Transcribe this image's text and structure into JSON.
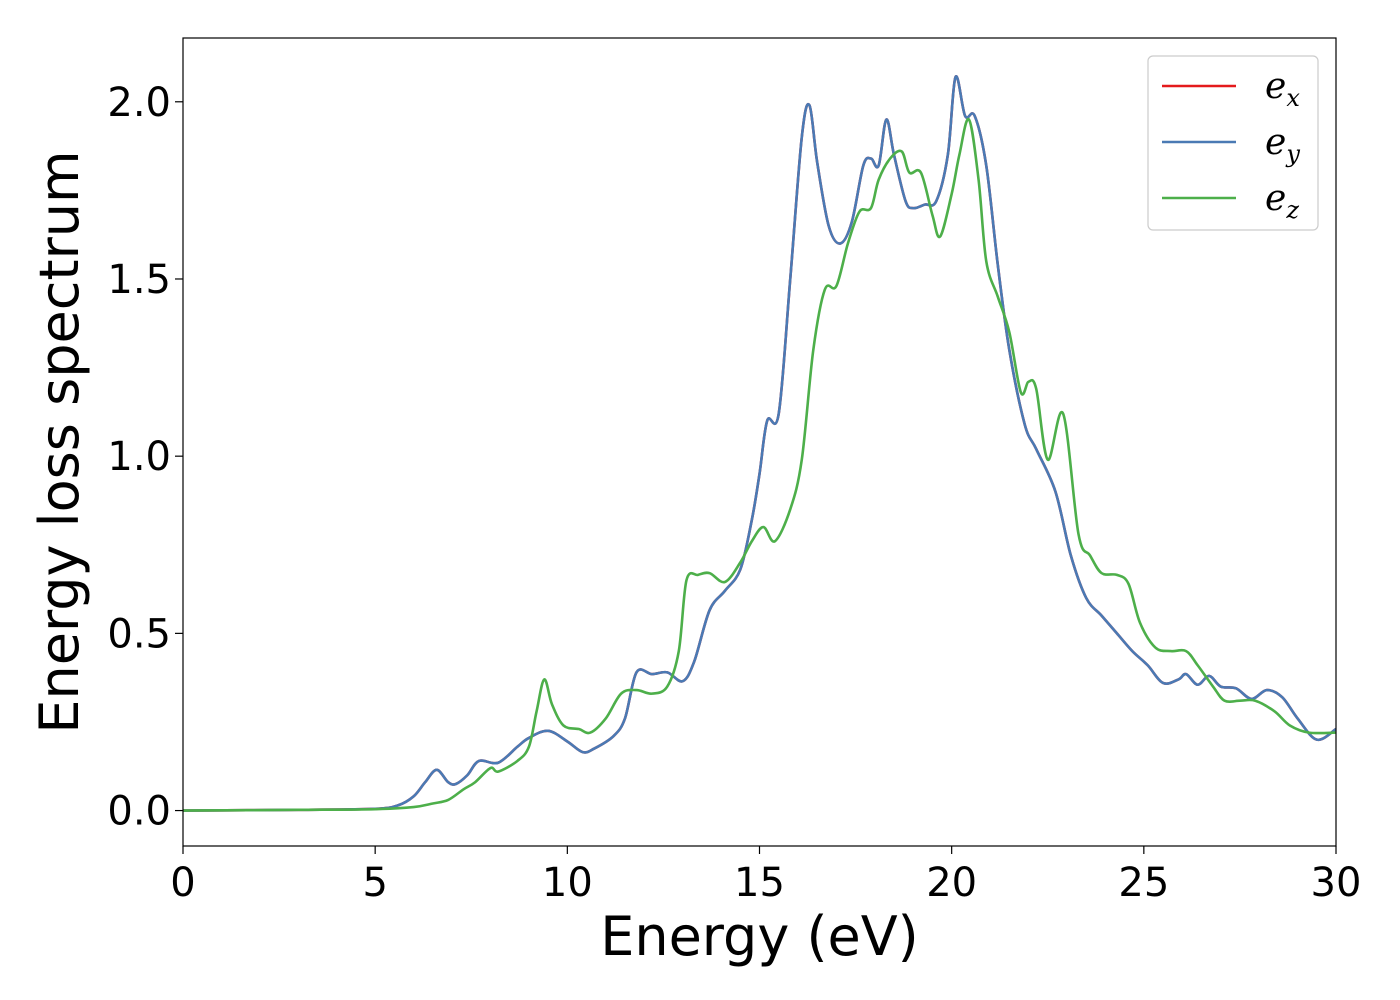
{
  "chart_data": {
    "type": "line",
    "xlabel": "Energy (eV)",
    "ylabel": "Energy loss spectrum",
    "xlim": [
      0,
      30
    ],
    "ylim": [
      -0.1,
      2.18
    ],
    "xticks": [
      0,
      5,
      10,
      15,
      20,
      25,
      30
    ],
    "yticks": [
      0.0,
      0.5,
      1.0,
      1.5,
      2.0
    ],
    "xtick_labels": [
      "0",
      "5",
      "10",
      "15",
      "20",
      "25",
      "30"
    ],
    "ytick_labels": [
      "0.0",
      "0.5",
      "1.0",
      "1.5",
      "2.0"
    ],
    "grid": false,
    "legend_position": "top-right",
    "series": [
      {
        "name": "ex",
        "base": "e",
        "sub": "x",
        "color": "#e41a1c",
        "points": [
          [
            0,
            0
          ],
          [
            3,
            0.002
          ],
          [
            5,
            0.005
          ],
          [
            5.6,
            0.015
          ],
          [
            6.0,
            0.04
          ],
          [
            6.3,
            0.08
          ],
          [
            6.6,
            0.115
          ],
          [
            6.9,
            0.08
          ],
          [
            7.1,
            0.075
          ],
          [
            7.4,
            0.1
          ],
          [
            7.7,
            0.14
          ],
          [
            8.2,
            0.135
          ],
          [
            8.7,
            0.18
          ],
          [
            9.0,
            0.205
          ],
          [
            9.5,
            0.225
          ],
          [
            10.0,
            0.195
          ],
          [
            10.4,
            0.165
          ],
          [
            10.7,
            0.175
          ],
          [
            11.2,
            0.21
          ],
          [
            11.5,
            0.26
          ],
          [
            11.8,
            0.39
          ],
          [
            12.2,
            0.385
          ],
          [
            12.6,
            0.39
          ],
          [
            13.0,
            0.365
          ],
          [
            13.3,
            0.42
          ],
          [
            13.7,
            0.565
          ],
          [
            14.1,
            0.62
          ],
          [
            14.5,
            0.68
          ],
          [
            14.8,
            0.82
          ],
          [
            15.0,
            0.95
          ],
          [
            15.2,
            1.1
          ],
          [
            15.5,
            1.12
          ],
          [
            15.8,
            1.5
          ],
          [
            16.1,
            1.9
          ],
          [
            16.3,
            1.99
          ],
          [
            16.5,
            1.83
          ],
          [
            16.8,
            1.65
          ],
          [
            17.1,
            1.6
          ],
          [
            17.4,
            1.66
          ],
          [
            17.7,
            1.82
          ],
          [
            17.9,
            1.84
          ],
          [
            18.1,
            1.82
          ],
          [
            18.3,
            1.95
          ],
          [
            18.5,
            1.85
          ],
          [
            18.8,
            1.72
          ],
          [
            19.0,
            1.7
          ],
          [
            19.3,
            1.71
          ],
          [
            19.6,
            1.72
          ],
          [
            19.9,
            1.85
          ],
          [
            20.1,
            2.07
          ],
          [
            20.35,
            1.96
          ],
          [
            20.6,
            1.96
          ],
          [
            20.9,
            1.82
          ],
          [
            21.2,
            1.54
          ],
          [
            21.5,
            1.3
          ],
          [
            21.9,
            1.09
          ],
          [
            22.2,
            1.02
          ],
          [
            22.7,
            0.9
          ],
          [
            23.1,
            0.72
          ],
          [
            23.5,
            0.6
          ],
          [
            23.9,
            0.55
          ],
          [
            24.3,
            0.5
          ],
          [
            24.7,
            0.45
          ],
          [
            25.1,
            0.41
          ],
          [
            25.5,
            0.36
          ],
          [
            25.9,
            0.37
          ],
          [
            26.1,
            0.385
          ],
          [
            26.4,
            0.355
          ],
          [
            26.7,
            0.38
          ],
          [
            27.0,
            0.35
          ],
          [
            27.4,
            0.345
          ],
          [
            27.8,
            0.315
          ],
          [
            28.2,
            0.34
          ],
          [
            28.6,
            0.32
          ],
          [
            29.0,
            0.26
          ],
          [
            29.5,
            0.2
          ],
          [
            30.0,
            0.23
          ]
        ]
      },
      {
        "name": "ey",
        "base": "e",
        "sub": "y",
        "color": "#4a7ab4",
        "points": [
          [
            0,
            0
          ],
          [
            3,
            0.002
          ],
          [
            5,
            0.005
          ],
          [
            5.6,
            0.015
          ],
          [
            6.0,
            0.04
          ],
          [
            6.3,
            0.08
          ],
          [
            6.6,
            0.115
          ],
          [
            6.9,
            0.08
          ],
          [
            7.1,
            0.075
          ],
          [
            7.4,
            0.1
          ],
          [
            7.7,
            0.14
          ],
          [
            8.2,
            0.135
          ],
          [
            8.7,
            0.18
          ],
          [
            9.0,
            0.205
          ],
          [
            9.5,
            0.225
          ],
          [
            10.0,
            0.195
          ],
          [
            10.4,
            0.165
          ],
          [
            10.7,
            0.175
          ],
          [
            11.2,
            0.21
          ],
          [
            11.5,
            0.26
          ],
          [
            11.8,
            0.39
          ],
          [
            12.2,
            0.385
          ],
          [
            12.6,
            0.39
          ],
          [
            13.0,
            0.365
          ],
          [
            13.3,
            0.42
          ],
          [
            13.7,
            0.565
          ],
          [
            14.1,
            0.62
          ],
          [
            14.5,
            0.68
          ],
          [
            14.8,
            0.82
          ],
          [
            15.0,
            0.95
          ],
          [
            15.2,
            1.1
          ],
          [
            15.5,
            1.12
          ],
          [
            15.8,
            1.5
          ],
          [
            16.1,
            1.9
          ],
          [
            16.3,
            1.99
          ],
          [
            16.5,
            1.83
          ],
          [
            16.8,
            1.65
          ],
          [
            17.1,
            1.6
          ],
          [
            17.4,
            1.66
          ],
          [
            17.7,
            1.82
          ],
          [
            17.9,
            1.84
          ],
          [
            18.1,
            1.82
          ],
          [
            18.3,
            1.95
          ],
          [
            18.5,
            1.85
          ],
          [
            18.8,
            1.72
          ],
          [
            19.0,
            1.7
          ],
          [
            19.3,
            1.71
          ],
          [
            19.6,
            1.72
          ],
          [
            19.9,
            1.85
          ],
          [
            20.1,
            2.07
          ],
          [
            20.35,
            1.96
          ],
          [
            20.6,
            1.96
          ],
          [
            20.9,
            1.82
          ],
          [
            21.2,
            1.54
          ],
          [
            21.5,
            1.3
          ],
          [
            21.9,
            1.09
          ],
          [
            22.2,
            1.02
          ],
          [
            22.7,
            0.9
          ],
          [
            23.1,
            0.72
          ],
          [
            23.5,
            0.6
          ],
          [
            23.9,
            0.55
          ],
          [
            24.3,
            0.5
          ],
          [
            24.7,
            0.45
          ],
          [
            25.1,
            0.41
          ],
          [
            25.5,
            0.36
          ],
          [
            25.9,
            0.37
          ],
          [
            26.1,
            0.385
          ],
          [
            26.4,
            0.355
          ],
          [
            26.7,
            0.38
          ],
          [
            27.0,
            0.35
          ],
          [
            27.4,
            0.345
          ],
          [
            27.8,
            0.315
          ],
          [
            28.2,
            0.34
          ],
          [
            28.6,
            0.32
          ],
          [
            29.0,
            0.26
          ],
          [
            29.5,
            0.2
          ],
          [
            30.0,
            0.23
          ]
        ]
      },
      {
        "name": "ez",
        "base": "e",
        "sub": "z",
        "color": "#4daf4a",
        "points": [
          [
            0,
            0
          ],
          [
            3,
            0.002
          ],
          [
            5,
            0.004
          ],
          [
            6.0,
            0.01
          ],
          [
            6.5,
            0.02
          ],
          [
            6.9,
            0.03
          ],
          [
            7.3,
            0.06
          ],
          [
            7.6,
            0.08
          ],
          [
            8.0,
            0.12
          ],
          [
            8.2,
            0.11
          ],
          [
            8.7,
            0.14
          ],
          [
            9.0,
            0.18
          ],
          [
            9.2,
            0.28
          ],
          [
            9.4,
            0.37
          ],
          [
            9.6,
            0.3
          ],
          [
            9.9,
            0.24
          ],
          [
            10.3,
            0.23
          ],
          [
            10.6,
            0.22
          ],
          [
            11.0,
            0.26
          ],
          [
            11.4,
            0.33
          ],
          [
            11.8,
            0.34
          ],
          [
            12.2,
            0.33
          ],
          [
            12.6,
            0.35
          ],
          [
            12.9,
            0.45
          ],
          [
            13.1,
            0.65
          ],
          [
            13.4,
            0.665
          ],
          [
            13.7,
            0.67
          ],
          [
            14.1,
            0.645
          ],
          [
            14.5,
            0.7
          ],
          [
            14.8,
            0.76
          ],
          [
            15.1,
            0.8
          ],
          [
            15.4,
            0.76
          ],
          [
            15.8,
            0.85
          ],
          [
            16.1,
            0.99
          ],
          [
            16.4,
            1.3
          ],
          [
            16.7,
            1.47
          ],
          [
            17.0,
            1.48
          ],
          [
            17.3,
            1.6
          ],
          [
            17.6,
            1.69
          ],
          [
            17.9,
            1.7
          ],
          [
            18.1,
            1.78
          ],
          [
            18.4,
            1.84
          ],
          [
            18.7,
            1.86
          ],
          [
            18.9,
            1.8
          ],
          [
            19.2,
            1.8
          ],
          [
            19.5,
            1.68
          ],
          [
            19.7,
            1.62
          ],
          [
            20.0,
            1.74
          ],
          [
            20.2,
            1.85
          ],
          [
            20.45,
            1.95
          ],
          [
            20.7,
            1.78
          ],
          [
            20.9,
            1.55
          ],
          [
            21.2,
            1.45
          ],
          [
            21.5,
            1.35
          ],
          [
            21.8,
            1.18
          ],
          [
            22.0,
            1.21
          ],
          [
            22.2,
            1.19
          ],
          [
            22.5,
            0.99
          ],
          [
            22.9,
            1.12
          ],
          [
            23.3,
            0.78
          ],
          [
            23.6,
            0.72
          ],
          [
            23.9,
            0.67
          ],
          [
            24.3,
            0.665
          ],
          [
            24.6,
            0.64
          ],
          [
            24.9,
            0.53
          ],
          [
            25.3,
            0.46
          ],
          [
            25.7,
            0.45
          ],
          [
            26.1,
            0.45
          ],
          [
            26.4,
            0.41
          ],
          [
            26.8,
            0.35
          ],
          [
            27.1,
            0.31
          ],
          [
            27.5,
            0.31
          ],
          [
            27.9,
            0.31
          ],
          [
            28.4,
            0.28
          ],
          [
            28.8,
            0.24
          ],
          [
            29.3,
            0.22
          ],
          [
            30.0,
            0.22
          ]
        ]
      }
    ]
  }
}
